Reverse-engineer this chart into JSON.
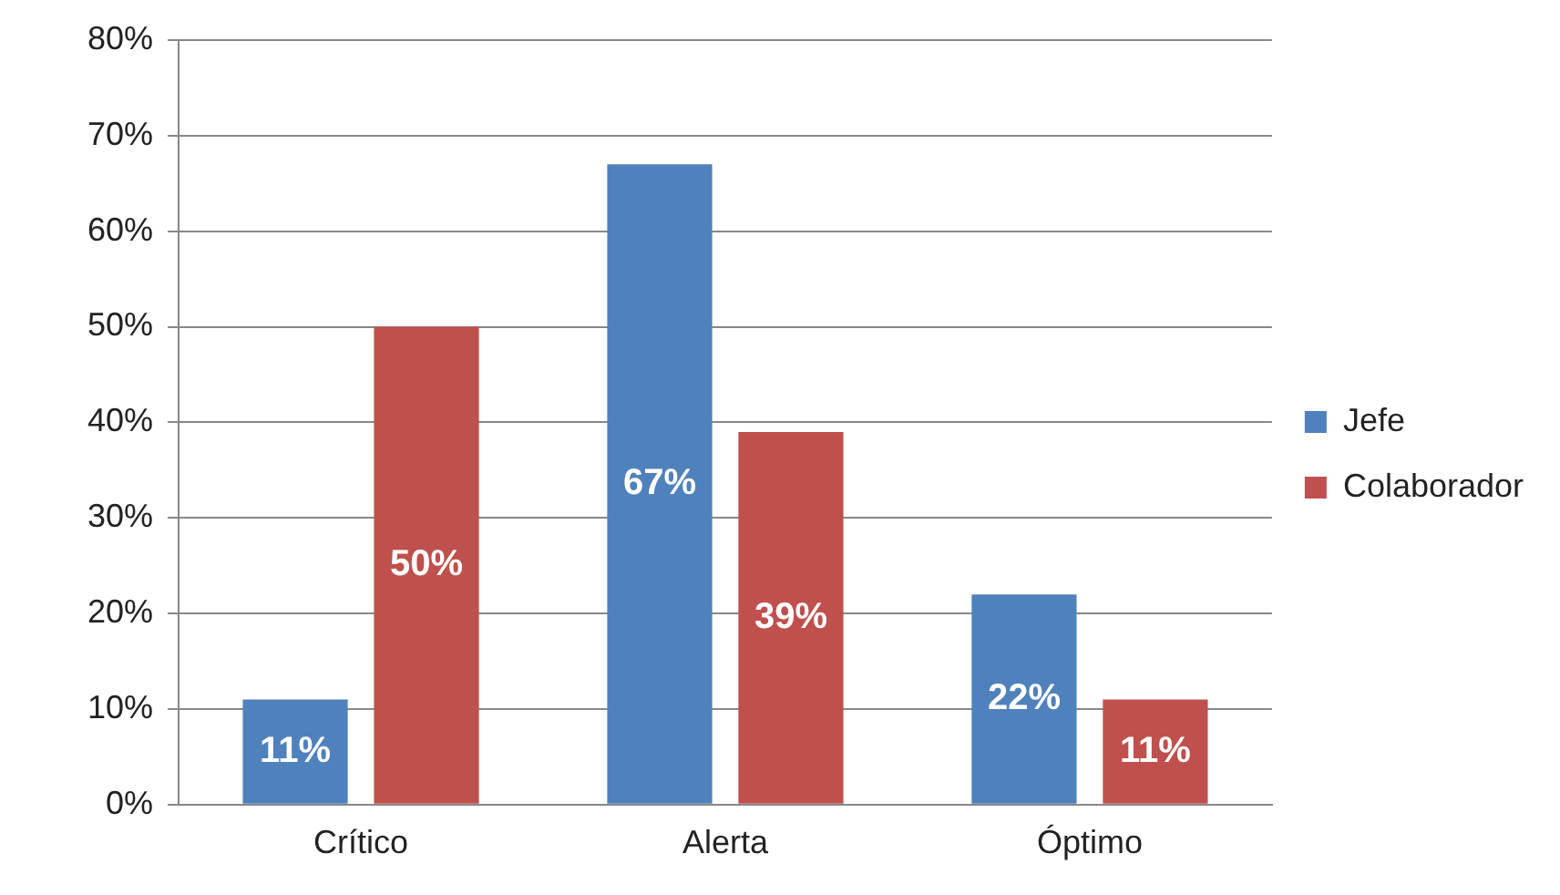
{
  "chart_data": {
    "type": "bar",
    "categories": [
      "Crítico",
      "Alerta",
      "Óptimo"
    ],
    "series": [
      {
        "name": "Jefe",
        "color": "#4f81bd",
        "values": [
          11,
          67,
          22
        ],
        "value_labels": [
          "11%",
          "67%",
          "22%"
        ]
      },
      {
        "name": "Colaborador",
        "color": "#c0504d",
        "values": [
          50,
          39,
          11
        ],
        "value_labels": [
          "50%",
          "39%",
          "11%"
        ]
      }
    ],
    "ylim": [
      0,
      80
    ],
    "yticks": [
      {
        "value": 0,
        "label": "0%"
      },
      {
        "value": 10,
        "label": "10%"
      },
      {
        "value": 20,
        "label": "20%"
      },
      {
        "value": 30,
        "label": "30%"
      },
      {
        "value": 40,
        "label": "40%"
      },
      {
        "value": 50,
        "label": "50%"
      },
      {
        "value": 60,
        "label": "60%"
      },
      {
        "value": 70,
        "label": "70%"
      },
      {
        "value": 80,
        "label": "80%"
      }
    ],
    "grid": "y",
    "legend": "right"
  }
}
